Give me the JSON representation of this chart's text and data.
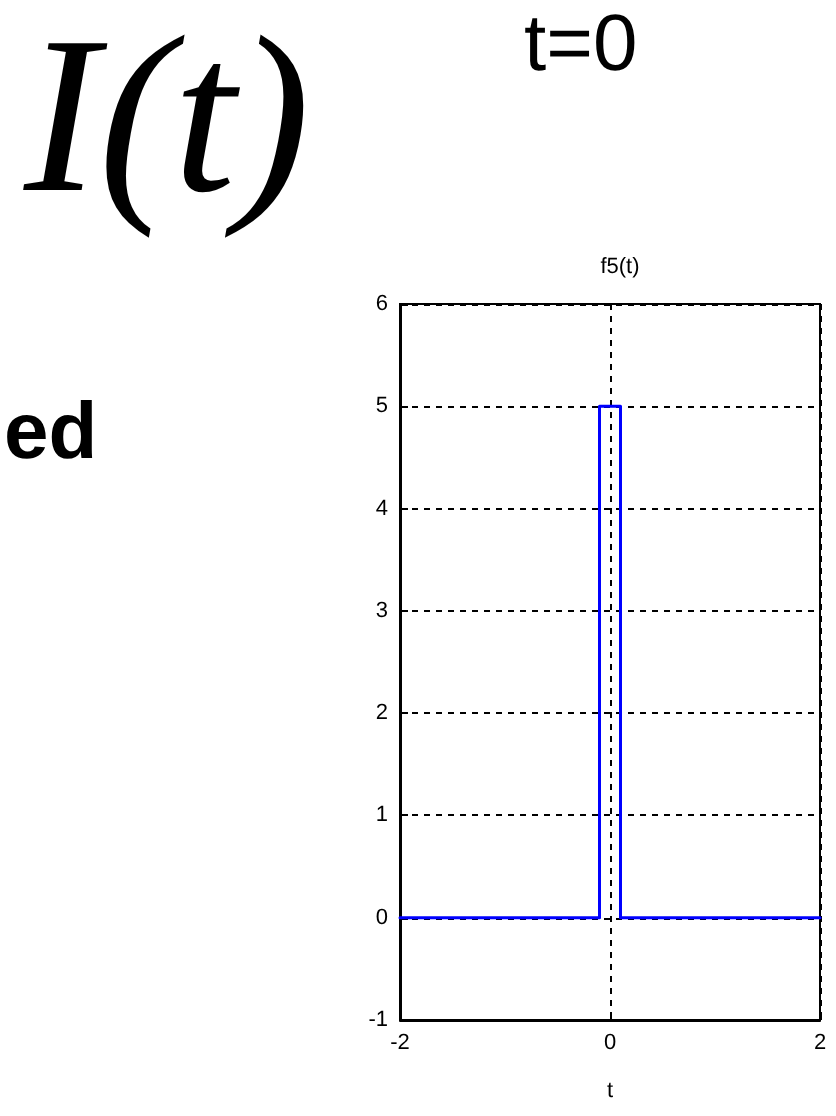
{
  "chart_data": {
    "type": "line",
    "title": "f5(t)",
    "xlabel": "t",
    "x": [
      -2,
      -0.1,
      -0.1,
      0.1,
      0.1,
      2
    ],
    "series": [
      {
        "color": "#0000ff",
        "values": [
          0,
          0,
          5,
          5,
          0,
          0
        ]
      }
    ],
    "xlim": [
      -2,
      2
    ],
    "xticks": [
      -2,
      0,
      2
    ],
    "ylim": [
      -1,
      6
    ],
    "yticks": [
      -1,
      0,
      1,
      2,
      3,
      4,
      5,
      6
    ],
    "grid": true,
    "annotations": [
      "I(t)",
      "t=0",
      "ed"
    ]
  }
}
